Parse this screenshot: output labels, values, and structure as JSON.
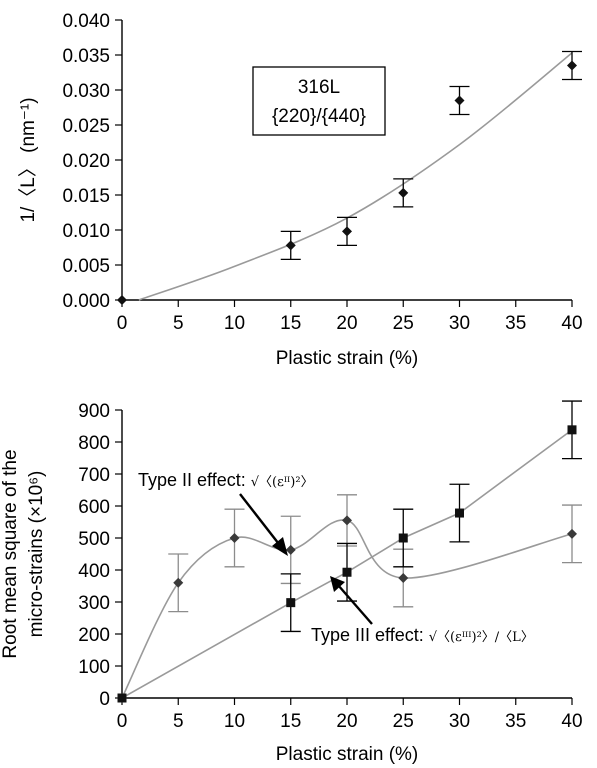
{
  "chart_data": [
    {
      "type": "scatter",
      "ylabel": "1/〈L〉 (nm⁻¹)",
      "xlabel": "Plastic strain (%)",
      "xlim": [
        0,
        40
      ],
      "ylim": [
        0,
        0.04
      ],
      "x_ticks": [
        "0",
        "5",
        "10",
        "15",
        "20",
        "25",
        "30",
        "35",
        "40"
      ],
      "y_ticks": [
        "0.000",
        "0.005",
        "0.010",
        "0.015",
        "0.020",
        "0.025",
        "0.030",
        "0.035",
        "0.040"
      ],
      "legend_box": [
        "316L",
        "{220}/{440}"
      ],
      "grid": false,
      "series": [
        {
          "marker": "diamond",
          "color": "#000000",
          "x": [
            0,
            15,
            20,
            25,
            30,
            40
          ],
          "y": [
            0.0,
            0.0078,
            0.0098,
            0.0153,
            0.0285,
            0.0335
          ],
          "err": [
            0,
            0.002,
            0.002,
            0.002,
            0.002,
            0.002
          ],
          "fit": {
            "x": [
              1.5,
              10,
              20,
              30,
              40
            ],
            "y": [
              0.0,
              0.0048,
              0.0117,
              0.0222,
              0.0353
            ],
            "color": "#9a9a9a"
          }
        }
      ]
    },
    {
      "type": "line",
      "ylabel": "Root mean square of the micro-strains (×10⁶)",
      "xlabel": "Plastic strain (%)",
      "xlim": [
        0,
        40
      ],
      "ylim": [
        0,
        900
      ],
      "x_ticks": [
        "0",
        "5",
        "10",
        "15",
        "20",
        "25",
        "30",
        "35",
        "40"
      ],
      "y_ticks": [
        "0",
        "100",
        "200",
        "300",
        "400",
        "500",
        "600",
        "700",
        "800",
        "900"
      ],
      "grid": false,
      "series": [
        {
          "annotation_main": "Type II effect: ",
          "annotation_math": "√〈(εᴵᴵ)²〉",
          "marker": "diamond",
          "color": "#8c8c8c",
          "x": [
            0,
            5,
            10,
            15,
            20,
            25,
            40
          ],
          "y": [
            0,
            360,
            500,
            463,
            555,
            375,
            513
          ],
          "err": [
            0,
            90,
            90,
            105,
            80,
            90,
            90
          ]
        },
        {
          "annotation_main": "Type III effect: ",
          "annotation_math": "√〈(εᴵᴵᴵ)²〉/〈L〉",
          "marker": "square",
          "color": "#000000",
          "x": [
            0,
            15,
            20,
            25,
            30,
            40
          ],
          "y": [
            0,
            298,
            393,
            500,
            578,
            838
          ],
          "err": [
            0,
            90,
            90,
            90,
            90,
            90
          ]
        }
      ]
    }
  ]
}
